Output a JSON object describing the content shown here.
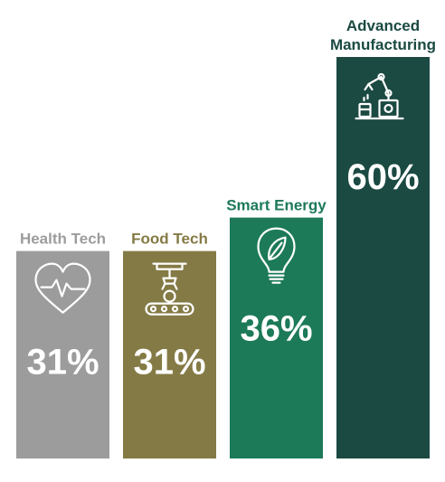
{
  "chart_data": {
    "type": "bar",
    "categories": [
      "Health Tech",
      "Food Tech",
      "Smart Energy",
      "Advanced Manufacturing"
    ],
    "category_lines": [
      [
        "Health Tech"
      ],
      [
        "Food Tech"
      ],
      [
        "Smart Energy"
      ],
      [
        "Advanced",
        "Manufacturing"
      ]
    ],
    "values": [
      31,
      31,
      36,
      60
    ],
    "value_labels": [
      "31%",
      "31%",
      "36%",
      "60%"
    ],
    "unit": "%",
    "colors": [
      "#9c9c9c",
      "#847a45",
      "#1c7a58",
      "#1b4a42"
    ],
    "label_colors": [
      "#9c9c9c",
      "#847a45",
      "#1c7a58",
      "#1b4a42"
    ],
    "icons": [
      "heart-pulse-icon",
      "robot-arm-conveyor-icon",
      "lightbulb-leaf-icon",
      "robotic-arm-icon"
    ],
    "title": "",
    "xlabel": "",
    "ylabel": "",
    "ylim": [
      0,
      60
    ],
    "grid": false,
    "legend": "none"
  }
}
